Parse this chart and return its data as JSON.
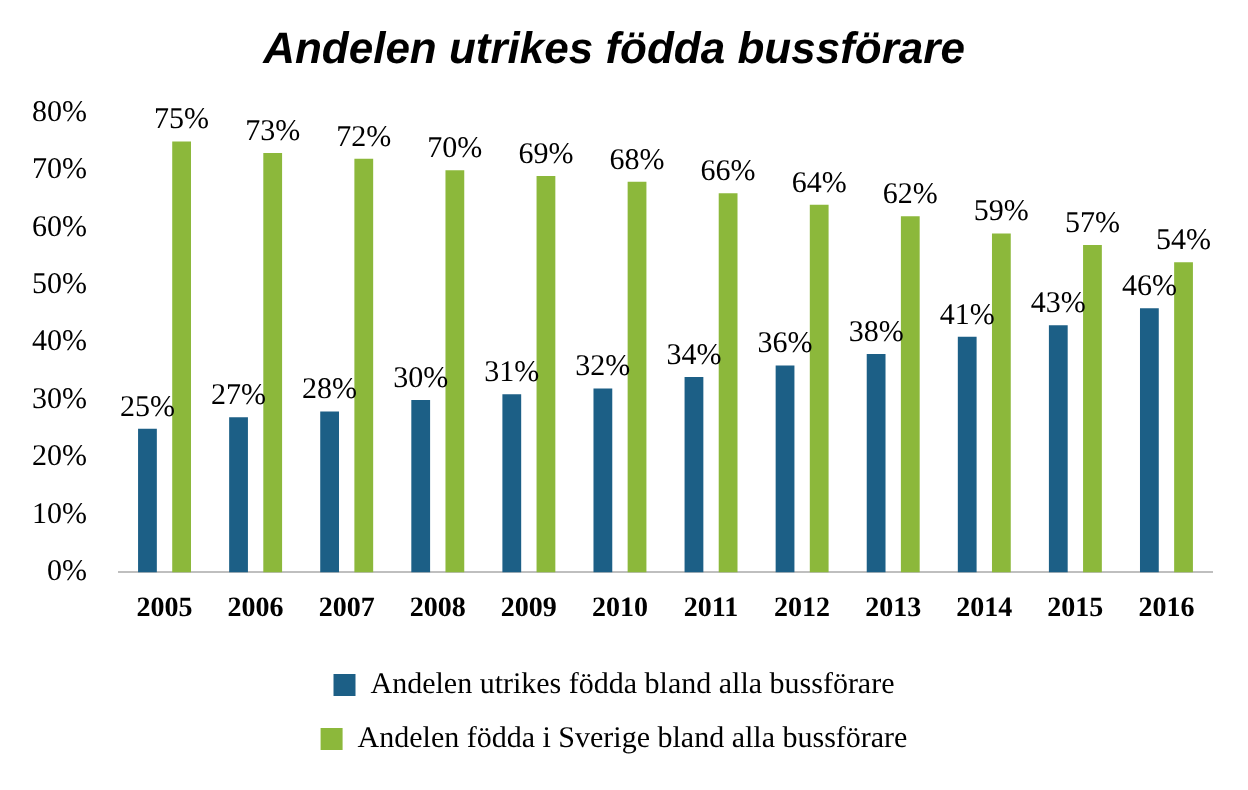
{
  "chart_data": {
    "type": "bar",
    "title": "Andelen utrikes födda bussförare",
    "categories": [
      "2005",
      "2006",
      "2007",
      "2008",
      "2009",
      "2010",
      "2011",
      "2012",
      "2013",
      "2014",
      "2015",
      "2016"
    ],
    "series": [
      {
        "name": "Andelen utrikes födda bland alla bussförare",
        "color": "#1c5f86",
        "values": [
          25,
          27,
          28,
          30,
          31,
          32,
          34,
          36,
          38,
          41,
          43,
          46
        ],
        "value_labels": [
          "25%",
          "27%",
          "28%",
          "30%",
          "31%",
          "32%",
          "34%",
          "36%",
          "38%",
          "41%",
          "43%",
          "46%"
        ]
      },
      {
        "name": "Andelen födda i Sverige bland alla bussförare",
        "color": "#8cb83b",
        "values": [
          75,
          73,
          72,
          70,
          69,
          68,
          66,
          64,
          62,
          59,
          57,
          54
        ],
        "value_labels": [
          "75%",
          "73%",
          "72%",
          "70%",
          "69%",
          "68%",
          "66%",
          "64%",
          "62%",
          "59%",
          "57%",
          "54%"
        ]
      }
    ],
    "ylim": [
      0,
      80
    ],
    "yticks": [
      {
        "value": 0,
        "label": "0%"
      },
      {
        "value": 10,
        "label": "10%"
      },
      {
        "value": 20,
        "label": "20%"
      },
      {
        "value": 30,
        "label": "30%"
      },
      {
        "value": 40,
        "label": "40%"
      },
      {
        "value": 50,
        "label": "50%"
      },
      {
        "value": 60,
        "label": "60%"
      },
      {
        "value": 70,
        "label": "70%"
      },
      {
        "value": 80,
        "label": "80%"
      }
    ],
    "grid": false,
    "legend": "bottom"
  }
}
